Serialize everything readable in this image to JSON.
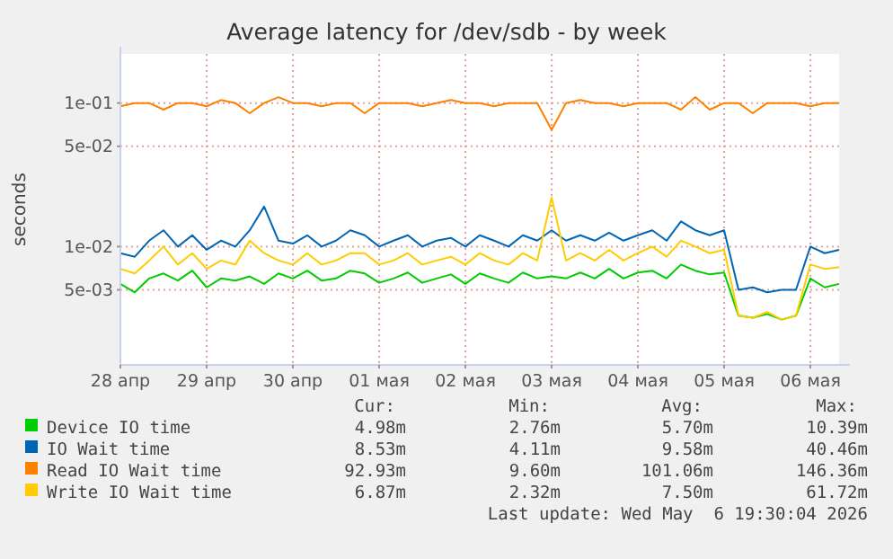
{
  "chart_data": {
    "type": "line",
    "title": "Average latency for /dev/sdb - by week",
    "ylabel": "seconds",
    "log": "y",
    "grid": true,
    "legend": "bottom",
    "ylim": [
      0.0015,
      0.22
    ],
    "yticks": [
      {
        "value": 0.005,
        "label": "5e-03"
      },
      {
        "value": 0.01,
        "label": "1e-02"
      },
      {
        "value": 0.05,
        "label": "5e-02"
      },
      {
        "value": 0.1,
        "label": "1e-01"
      }
    ],
    "xlim": [
      "2026-04-28T00:00",
      "2026-05-06T08:00"
    ],
    "xticks": [
      {
        "value": "2026-04-28T00:00",
        "label": "28 апр"
      },
      {
        "value": "2026-04-29T00:00",
        "label": "29 апр"
      },
      {
        "value": "2026-04-30T00:00",
        "label": "30 апр"
      },
      {
        "value": "2026-05-01T00:00",
        "label": "01 мая"
      },
      {
        "value": "2026-05-02T00:00",
        "label": "02 мая"
      },
      {
        "value": "2026-05-03T00:00",
        "label": "03 мая"
      },
      {
        "value": "2026-05-04T00:00",
        "label": "04 мая"
      },
      {
        "value": "2026-05-05T00:00",
        "label": "05 мая"
      },
      {
        "value": "2026-05-06T00:00",
        "label": "06 мая"
      }
    ],
    "x": [
      "2026-04-28T00:00",
      "2026-04-28T04:00",
      "2026-04-28T08:00",
      "2026-04-28T12:00",
      "2026-04-28T16:00",
      "2026-04-28T20:00",
      "2026-04-29T00:00",
      "2026-04-29T04:00",
      "2026-04-29T08:00",
      "2026-04-29T12:00",
      "2026-04-29T16:00",
      "2026-04-29T20:00",
      "2026-04-30T00:00",
      "2026-04-30T04:00",
      "2026-04-30T08:00",
      "2026-04-30T12:00",
      "2026-04-30T16:00",
      "2026-04-30T20:00",
      "2026-05-01T00:00",
      "2026-05-01T04:00",
      "2026-05-01T08:00",
      "2026-05-01T12:00",
      "2026-05-01T16:00",
      "2026-05-01T20:00",
      "2026-05-02T00:00",
      "2026-05-02T04:00",
      "2026-05-02T08:00",
      "2026-05-02T12:00",
      "2026-05-02T16:00",
      "2026-05-02T20:00",
      "2026-05-03T00:00",
      "2026-05-03T04:00",
      "2026-05-03T08:00",
      "2026-05-03T12:00",
      "2026-05-03T16:00",
      "2026-05-03T20:00",
      "2026-05-04T00:00",
      "2026-05-04T04:00",
      "2026-05-04T08:00",
      "2026-05-04T12:00",
      "2026-05-04T16:00",
      "2026-05-04T20:00",
      "2026-05-05T00:00",
      "2026-05-05T04:00",
      "2026-05-05T08:00",
      "2026-05-05T12:00",
      "2026-05-05T16:00",
      "2026-05-05T20:00",
      "2026-05-06T00:00",
      "2026-05-06T04:00",
      "2026-05-06T08:00"
    ],
    "series": [
      {
        "name": "Device IO time",
        "color": "#00cc00",
        "values": [
          0.0055,
          0.0048,
          0.006,
          0.0065,
          0.0058,
          0.0068,
          0.0052,
          0.006,
          0.0058,
          0.0062,
          0.0055,
          0.0065,
          0.006,
          0.0068,
          0.0058,
          0.006,
          0.0068,
          0.0065,
          0.0056,
          0.006,
          0.0066,
          0.0056,
          0.006,
          0.0064,
          0.0055,
          0.0065,
          0.006,
          0.0056,
          0.0066,
          0.006,
          0.0062,
          0.006,
          0.0066,
          0.006,
          0.007,
          0.006,
          0.0066,
          0.0068,
          0.006,
          0.0075,
          0.0068,
          0.0064,
          0.0066,
          0.0033,
          0.0032,
          0.0034,
          0.0031,
          0.0033,
          0.006,
          0.0052,
          0.0055
        ]
      },
      {
        "name": "IO Wait time",
        "color": "#0066b3",
        "values": [
          0.009,
          0.0085,
          0.011,
          0.013,
          0.01,
          0.012,
          0.0095,
          0.011,
          0.01,
          0.013,
          0.019,
          0.011,
          0.0105,
          0.012,
          0.01,
          0.011,
          0.013,
          0.012,
          0.01,
          0.011,
          0.012,
          0.01,
          0.011,
          0.0115,
          0.01,
          0.012,
          0.011,
          0.01,
          0.012,
          0.011,
          0.013,
          0.011,
          0.012,
          0.011,
          0.0125,
          0.011,
          0.012,
          0.013,
          0.011,
          0.015,
          0.013,
          0.012,
          0.013,
          0.005,
          0.0052,
          0.0048,
          0.005,
          0.005,
          0.01,
          0.009,
          0.0095
        ]
      },
      {
        "name": "Read IO Wait time",
        "color": "#ff8000",
        "values": [
          0.095,
          0.1,
          0.1,
          0.09,
          0.1,
          0.1,
          0.095,
          0.105,
          0.1,
          0.085,
          0.1,
          0.11,
          0.1,
          0.1,
          0.095,
          0.1,
          0.1,
          0.085,
          0.1,
          0.1,
          0.1,
          0.095,
          0.1,
          0.105,
          0.1,
          0.1,
          0.095,
          0.1,
          0.1,
          0.1,
          0.065,
          0.1,
          0.105,
          0.1,
          0.1,
          0.095,
          0.1,
          0.1,
          0.1,
          0.09,
          0.11,
          0.09,
          0.1,
          0.1,
          0.085,
          0.1,
          0.1,
          0.1,
          0.095,
          0.1,
          0.1
        ]
      },
      {
        "name": "Write IO Wait time",
        "color": "#ffcc00",
        "values": [
          0.007,
          0.0065,
          0.008,
          0.01,
          0.0075,
          0.009,
          0.007,
          0.008,
          0.0075,
          0.011,
          0.009,
          0.008,
          0.0075,
          0.009,
          0.0075,
          0.008,
          0.009,
          0.009,
          0.0075,
          0.008,
          0.009,
          0.0075,
          0.008,
          0.0085,
          0.0075,
          0.009,
          0.008,
          0.0075,
          0.009,
          0.008,
          0.022,
          0.008,
          0.009,
          0.008,
          0.0095,
          0.008,
          0.009,
          0.01,
          0.0085,
          0.011,
          0.01,
          0.009,
          0.0095,
          0.0033,
          0.0032,
          0.0035,
          0.0031,
          0.0033,
          0.0075,
          0.007,
          0.0072
        ]
      }
    ],
    "annotations": [
      "Cur:",
      "Min:",
      "Avg:",
      "Max:",
      "4.98m",
      "2.76m",
      "5.70m",
      "10.39m",
      "8.53m",
      "4.11m",
      "9.58m",
      "40.46m",
      "92.93m",
      "9.60m",
      "101.06m",
      "146.36m",
      "6.87m",
      "2.32m",
      "7.50m",
      "61.72m",
      "Last update: Wed May  6 19:30:04 2026"
    ]
  }
}
